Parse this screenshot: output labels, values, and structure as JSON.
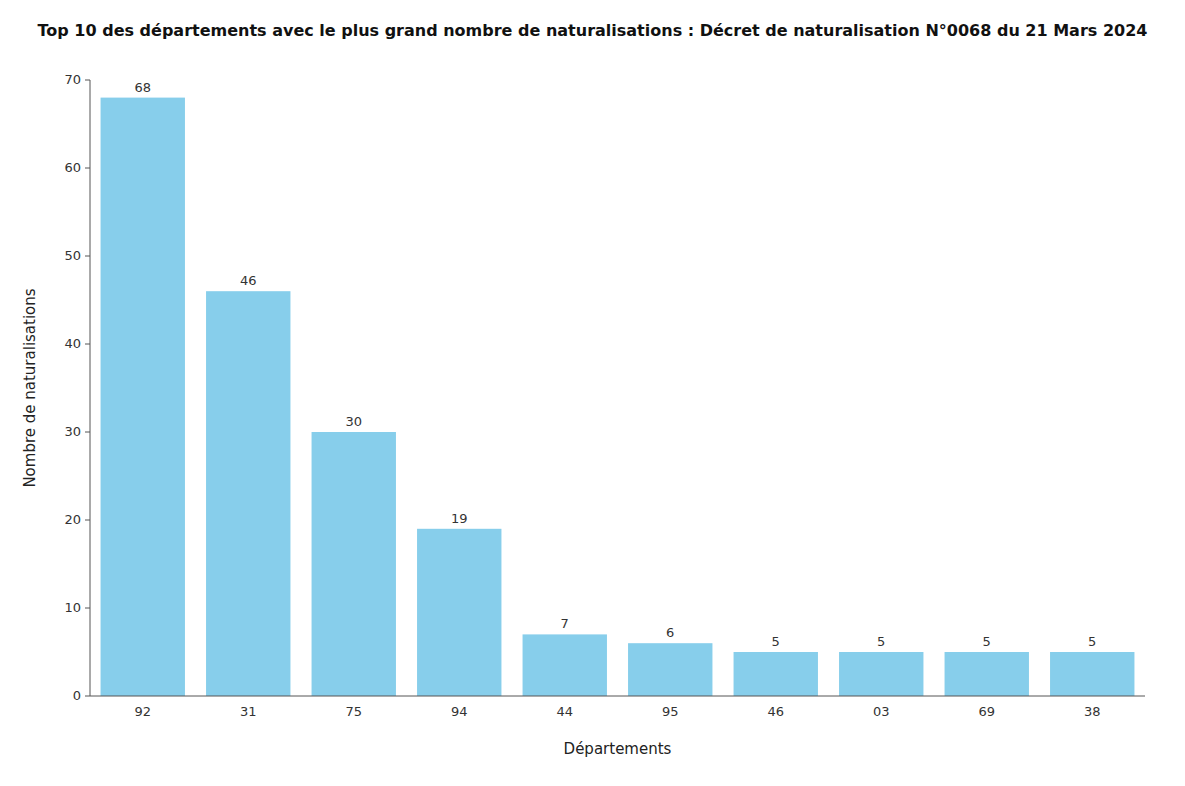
{
  "chart_data": {
    "type": "bar",
    "title": "Top 10 des départements avec le plus grand nombre de naturalisations : Décret de naturalisation N°0068 du 21 Mars 2024",
    "x_label": "Départements",
    "y_label": "Nombre de naturalisations",
    "categories": [
      "92",
      "31",
      "75",
      "94",
      "44",
      "95",
      "46",
      "03",
      "69",
      "38"
    ],
    "values": [
      68,
      46,
      30,
      19,
      7,
      6,
      5,
      5,
      5,
      5
    ],
    "color": "#87CEEB",
    "ylim": [
      0,
      70
    ],
    "yticks": [
      0,
      10,
      20,
      30,
      40,
      50,
      60,
      70
    ],
    "grid": false,
    "data_labels": true
  }
}
